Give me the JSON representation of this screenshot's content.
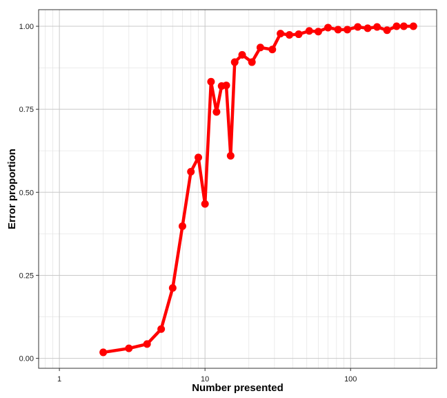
{
  "chart_data": {
    "type": "line",
    "title": "",
    "xlabel": "Number presented",
    "ylabel": "Error proportion",
    "x_scale": "log10",
    "xlim": [
      0.72,
      390
    ],
    "ylim": [
      -0.03,
      1.05
    ],
    "x_ticks": [
      1,
      10,
      100
    ],
    "x_tick_labels": [
      "1",
      "10",
      "100"
    ],
    "y_ticks": [
      0,
      0.25,
      0.5,
      0.75,
      1.0
    ],
    "y_tick_labels": [
      "0.00",
      "0.25",
      "0.50",
      "0.75",
      "1.00"
    ],
    "grid": true,
    "legend": "none",
    "series": [
      {
        "color": "#ff0000",
        "x": [
          2,
          3,
          4,
          5,
          6,
          7,
          8,
          9,
          10,
          11,
          12,
          13,
          14,
          15,
          16,
          18,
          21,
          24,
          29,
          33,
          38,
          44,
          52,
          60,
          70,
          82,
          95,
          112,
          131,
          152,
          178,
          207,
          232,
          270
        ],
        "y": [
          0.018,
          0.03,
          0.043,
          0.088,
          0.212,
          0.398,
          0.562,
          0.605,
          0.465,
          0.833,
          0.742,
          0.82,
          0.822,
          0.61,
          0.892,
          0.914,
          0.892,
          0.936,
          0.93,
          0.978,
          0.974,
          0.976,
          0.986,
          0.984,
          0.996,
          0.99,
          0.99,
          0.998,
          0.994,
          0.998,
          0.988,
          1.0,
          1.0,
          1.0
        ]
      }
    ]
  }
}
